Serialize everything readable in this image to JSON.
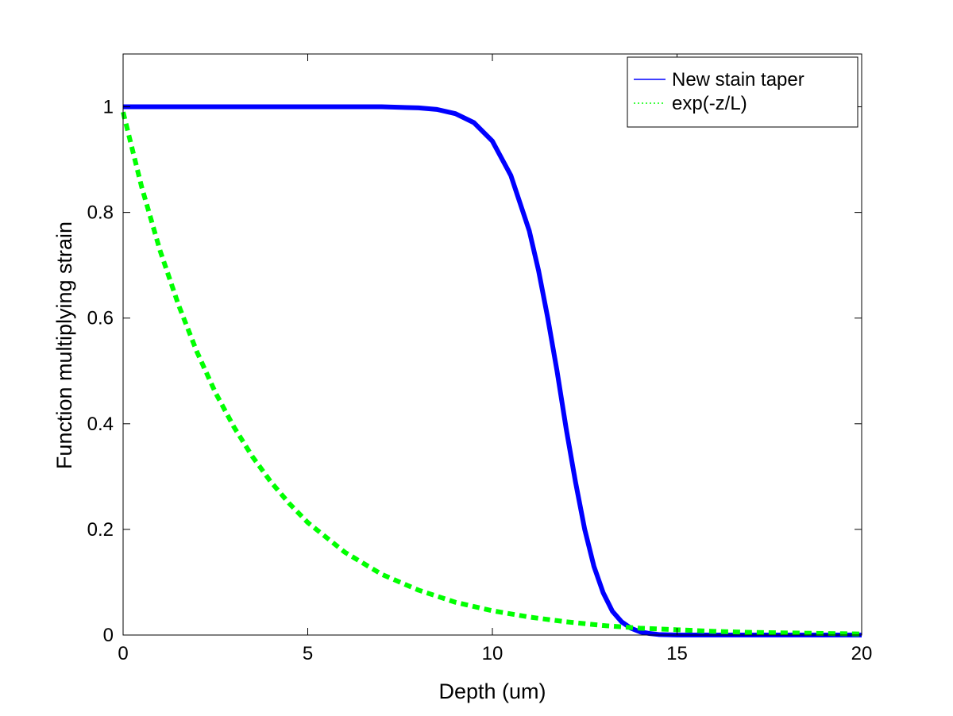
{
  "chart_data": {
    "type": "line",
    "title": "",
    "xlabel": "Depth (um)",
    "ylabel": "Function multiplying strain",
    "xlim": [
      0,
      20
    ],
    "ylim": [
      0,
      1.1
    ],
    "xticks": [
      0,
      5,
      10,
      15,
      20
    ],
    "xtick_labels": [
      "0",
      "5",
      "10",
      "15",
      "20"
    ],
    "yticks": [
      0,
      0.2,
      0.4,
      0.6,
      0.8,
      1
    ],
    "ytick_labels": [
      "0",
      "0.2",
      "0.4",
      "0.6",
      "0.8",
      "1"
    ],
    "grid": false,
    "legend": "top-right",
    "series": [
      {
        "name": "New stain taper",
        "color": "#0000ff",
        "style": "solid",
        "x": [
          0,
          2,
          4,
          6,
          7,
          8,
          8.5,
          9,
          9.5,
          10,
          10.5,
          11,
          11.25,
          11.5,
          11.75,
          12,
          12.25,
          12.5,
          12.75,
          13,
          13.25,
          13.5,
          13.75,
          14,
          14.25,
          14.5,
          15,
          15.5,
          16,
          17,
          18,
          19,
          20
        ],
        "y": [
          1,
          1,
          1,
          1,
          1,
          0.998,
          0.995,
          0.987,
          0.97,
          0.935,
          0.87,
          0.765,
          0.69,
          0.6,
          0.5,
          0.39,
          0.29,
          0.2,
          0.13,
          0.08,
          0.045,
          0.025,
          0.013,
          0.006,
          0.003,
          0.001,
          0,
          0,
          0,
          0,
          0,
          0,
          0
        ]
      },
      {
        "name": "exp(-z/L)",
        "color": "#00ff00",
        "style": "dotted",
        "x": [
          0,
          0.5,
          1,
          1.5,
          2,
          2.5,
          3,
          3.5,
          4,
          4.5,
          5,
          6,
          7,
          8,
          9,
          10,
          11,
          12,
          13,
          14,
          15,
          16,
          17,
          18,
          19,
          20
        ],
        "y": [
          0.99,
          0.849,
          0.728,
          0.625,
          0.536,
          0.459,
          0.394,
          0.338,
          0.29,
          0.249,
          0.213,
          0.157,
          0.115,
          0.085,
          0.062,
          0.046,
          0.034,
          0.025,
          0.018,
          0.013,
          0.01,
          0.007,
          0.005,
          0.004,
          0.003,
          0.002
        ]
      }
    ]
  }
}
